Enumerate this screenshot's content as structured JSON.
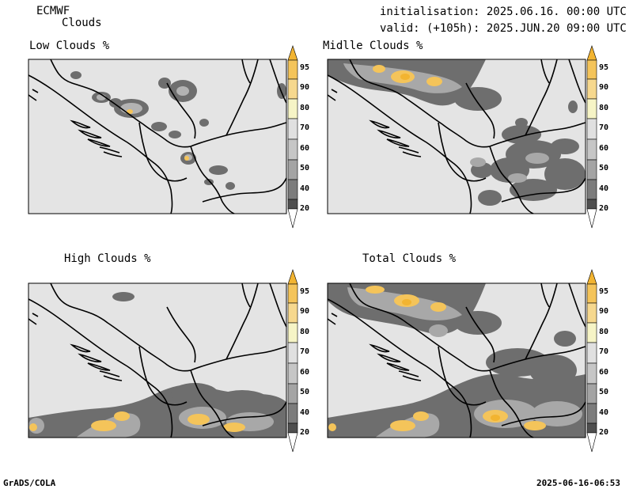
{
  "header": {
    "model": "ECMWF",
    "field": "Clouds",
    "init": "initialisation: 2025.06.16. 00:00 UTC",
    "valid": "valid: (+105h): 2025.JUN.20 09:00 UTC"
  },
  "panels": {
    "low": "Low Clouds %",
    "middle": "Midlle Clouds %",
    "high": "High Clouds %",
    "total": "Total Clouds %"
  },
  "colorbar": {
    "levels": [
      "95",
      "90",
      "80",
      "70",
      "60",
      "50",
      "40",
      "20"
    ],
    "colors": [
      "#f2b431",
      "#f4c45a",
      "#f6d88e",
      "#f6f4c6",
      "#c6c6c6",
      "#a4a4a4",
      "#7c7c7c",
      "#4f4f4f",
      "#e6e6e6"
    ]
  },
  "footer": {
    "left": "GrADS/COLA",
    "right": "2025-06-16-06:53"
  }
}
